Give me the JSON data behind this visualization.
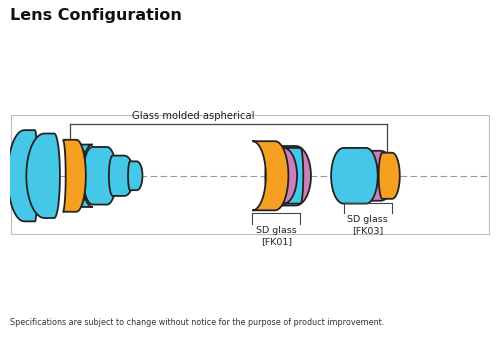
{
  "title": "Lens Configuration",
  "subtitle": "Specifications are subject to change without notice for the purpose of product improvement.",
  "annotation_aspherical": "Glass molded aspherical",
  "label_fk01": "SD glass\n[FK01]",
  "label_fk03": "SD glass\n[FK03]",
  "colors": {
    "cyan": "#45C8E8",
    "orange": "#F5A020",
    "purple": "#CC80BB",
    "outline": "#222222",
    "axis": "#999999",
    "background": "#FFFFFF",
    "border": "#AAAAAA"
  },
  "fig_width": 5.0,
  "fig_height": 3.38,
  "dpi": 100
}
